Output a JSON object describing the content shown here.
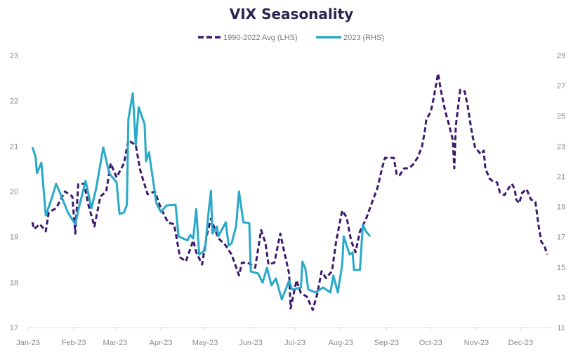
{
  "chart_data": {
    "type": "line",
    "title": "VIX Seasonality",
    "xlabel": "",
    "ylabel_left": "",
    "ylabel_right": "",
    "x_unit": "day of year",
    "x_ticks": [
      {
        "day": 0,
        "label": "Jan-23"
      },
      {
        "day": 31,
        "label": "Feb-23"
      },
      {
        "day": 59,
        "label": "Mar-23"
      },
      {
        "day": 90,
        "label": "Apr-23"
      },
      {
        "day": 120,
        "label": "May-23"
      },
      {
        "day": 151,
        "label": "Jun-23"
      },
      {
        "day": 181,
        "label": "Jul-23"
      },
      {
        "day": 212,
        "label": "Aug-23"
      },
      {
        "day": 243,
        "label": "Sep-23"
      },
      {
        "day": 273,
        "label": "Oct-23"
      },
      {
        "day": 304,
        "label": "Nov-23"
      },
      {
        "day": 334,
        "label": "Dec-23"
      }
    ],
    "xlim": [
      0,
      355
    ],
    "ylim_left": [
      17,
      23
    ],
    "yticks_left": [
      "17",
      "18",
      "19",
      "20",
      "21",
      "22",
      "23"
    ],
    "ylim_right": [
      11,
      29
    ],
    "yticks_right": [
      "11",
      "13",
      "15",
      "17",
      "19",
      "21",
      "23",
      "25",
      "27",
      "29"
    ],
    "grid": false,
    "legend_position": "top-center",
    "series": [
      {
        "name": "1990-2022 Avg (LHS)",
        "axis": "left",
        "color": "#3b1a6e",
        "style": "dashed",
        "x": [
          3,
          4,
          8,
          12,
          14,
          19,
          25,
          30,
          32,
          34,
          38,
          41,
          45,
          49,
          53,
          56,
          60,
          65,
          68,
          73,
          76,
          81,
          86,
          90,
          95,
          99,
          103,
          107,
          112,
          114,
          118,
          121,
          124,
          129,
          134,
          138,
          143,
          145,
          149,
          154,
          158,
          161,
          163,
          167,
          171,
          173,
          177,
          178,
          182,
          185,
          189,
          193,
          196,
          199,
          202,
          206,
          209,
          213,
          216,
          219,
          222,
          225,
          229,
          233,
          237,
          240,
          242,
          245,
          248,
          250,
          252,
          255,
          258,
          261,
          264,
          267,
          269,
          270,
          273,
          275,
          278,
          280,
          283,
          285,
          288,
          289,
          290,
          293,
          296,
          298,
          301,
          303,
          305,
          307,
          309,
          310,
          313,
          315,
          318,
          320,
          323,
          326,
          328,
          330,
          331,
          333,
          335,
          338,
          341,
          344,
          346,
          348,
          350,
          352
        ],
        "values": [
          19.32,
          19.17,
          19.28,
          19.12,
          19.54,
          19.63,
          20.0,
          19.89,
          19.07,
          20.16,
          20.17,
          19.69,
          19.23,
          19.89,
          20.0,
          20.62,
          20.31,
          20.62,
          21.13,
          21.02,
          20.47,
          19.94,
          20.0,
          19.63,
          19.31,
          19.28,
          18.55,
          18.46,
          18.92,
          18.66,
          18.39,
          19.01,
          19.4,
          18.97,
          18.81,
          18.61,
          18.15,
          18.43,
          18.43,
          18.32,
          19.15,
          18.86,
          18.39,
          18.43,
          19.07,
          18.77,
          18.19,
          17.42,
          18.04,
          17.76,
          17.68,
          17.39,
          17.73,
          18.24,
          18.09,
          18.24,
          18.92,
          19.58,
          19.43,
          18.92,
          18.66,
          19.12,
          19.38,
          19.74,
          20.09,
          20.51,
          20.74,
          20.74,
          20.74,
          20.36,
          20.36,
          20.51,
          20.51,
          20.59,
          20.74,
          20.98,
          21.32,
          21.59,
          21.75,
          22.06,
          22.6,
          22.21,
          21.75,
          21.52,
          21.13,
          20.51,
          21.44,
          22.24,
          22.21,
          21.9,
          21.28,
          20.98,
          20.9,
          20.82,
          20.9,
          20.51,
          20.28,
          20.23,
          20.2,
          19.97,
          19.92,
          20.08,
          20.17,
          20.05,
          19.82,
          19.74,
          19.97,
          20.05,
          19.82,
          19.77,
          19.28,
          18.89,
          18.81,
          18.61
        ]
      },
      {
        "name": "2023 (RHS)",
        "axis": "right",
        "color": "#29a9c9",
        "style": "solid",
        "x": [
          3,
          5,
          6,
          9,
          12,
          16,
          19,
          22,
          27,
          32,
          34,
          39,
          43,
          46,
          51,
          55,
          60,
          62,
          65,
          67,
          68,
          71,
          73,
          75,
          79,
          80,
          82,
          87,
          90,
          94,
          100,
          102,
          108,
          110,
          112,
          114,
          116,
          120,
          122,
          124,
          125,
          128,
          129,
          134,
          136,
          138,
          141,
          143,
          146,
          150,
          151,
          156,
          159,
          162,
          165,
          168,
          172,
          177,
          179,
          185,
          186,
          188,
          190,
          195,
          200,
          205,
          207,
          210,
          213,
          214,
          218,
          220,
          221,
          225,
          227,
          229,
          232
        ],
        "values": [
          22.92,
          22.32,
          21.21,
          21.9,
          18.42,
          19.54,
          20.51,
          19.82,
          18.61,
          17.82,
          18.75,
          20.7,
          18.89,
          20.14,
          22.92,
          21.21,
          20.6,
          18.52,
          18.61,
          19.12,
          24.78,
          26.5,
          23.06,
          25.57,
          24.45,
          22.0,
          22.6,
          19.21,
          18.66,
          19.07,
          19.12,
          17.03,
          16.76,
          17.13,
          16.89,
          18.84,
          15.83,
          16.11,
          18.29,
          20.05,
          17.22,
          17.68,
          17.03,
          17.96,
          16.43,
          16.57,
          17.68,
          20.0,
          17.96,
          17.91,
          14.71,
          14.57,
          13.97,
          14.95,
          13.79,
          14.25,
          12.86,
          14.11,
          13.51,
          13.65,
          15.36,
          14.9,
          13.51,
          13.32,
          13.65,
          13.32,
          14.44,
          13.32,
          15.18,
          17.03,
          15.83,
          15.97,
          14.81,
          14.81,
          17.82,
          17.36,
          17.03
        ]
      }
    ]
  }
}
